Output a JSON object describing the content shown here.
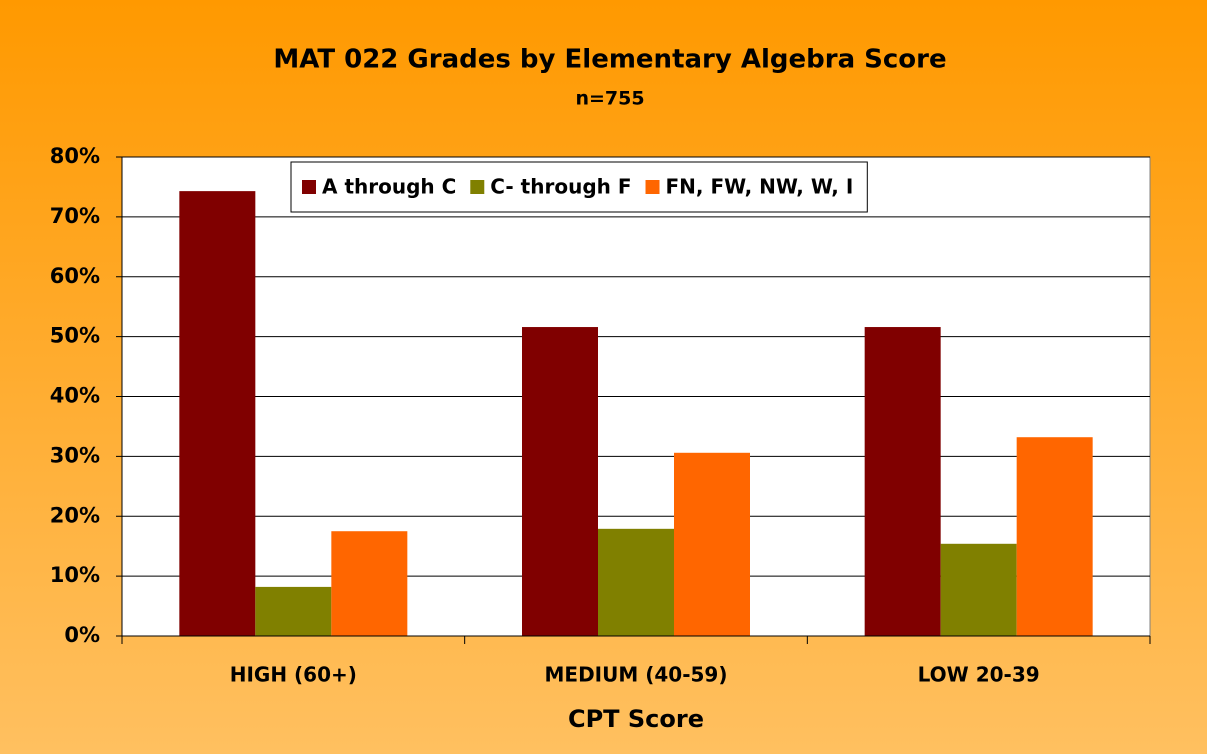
{
  "chart_data": {
    "type": "bar",
    "title": "MAT 022 Grades by Elementary Algebra Score",
    "subtitle": "n=755",
    "x_label": "CPT Score",
    "categories": [
      "HIGH (60+)",
      "MEDIUM (40-59)",
      "LOW 20-39"
    ],
    "series": [
      {
        "name": "A through C",
        "color": "#800000",
        "values": [
          74.3,
          51.6,
          51.6
        ]
      },
      {
        "name": "C- through F",
        "color": "#808000",
        "values": [
          8.2,
          17.9,
          15.4
        ]
      },
      {
        "name": "FN, FW, NW, W, I",
        "color": "#ff6600",
        "values": [
          17.5,
          30.6,
          33.2
        ]
      }
    ],
    "ylim": [
      0,
      80
    ],
    "yticks": [
      {
        "value": 0,
        "label": "0%"
      },
      {
        "value": 10,
        "label": "10%"
      },
      {
        "value": 20,
        "label": "20%"
      },
      {
        "value": 30,
        "label": "30%"
      },
      {
        "value": 40,
        "label": "40%"
      },
      {
        "value": 50,
        "label": "50%"
      },
      {
        "value": 60,
        "label": "60%"
      },
      {
        "value": 70,
        "label": "70%"
      },
      {
        "value": 80,
        "label": "80%"
      }
    ],
    "grid": true,
    "legend": "top"
  }
}
